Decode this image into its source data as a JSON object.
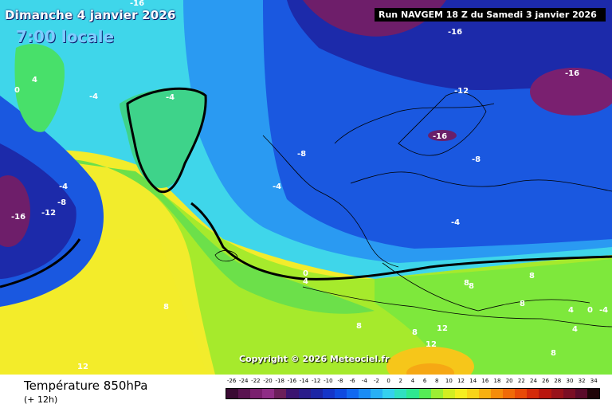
{
  "header": {
    "date": "Dimanche 4 janvier 2026",
    "time": "7:00 locale",
    "run": "Run NAVGEM 18 Z du Samedi 3 janvier 2026"
  },
  "copyright": "Copyright © 2026 Meteociel.fr",
  "footer": {
    "variable": "Température 850hPa",
    "lead": "(+ 12h)"
  },
  "contour_labels": [
    "-16",
    "-16",
    "-16",
    "-16",
    "-12",
    "-12",
    "-16",
    "-8",
    "-8",
    "-8",
    "-4",
    "-4",
    "-4",
    "-4",
    "-4",
    "4",
    "0",
    "0",
    "4",
    "8",
    "8",
    "8",
    "8",
    "8",
    "8",
    "12",
    "12",
    "12",
    "4",
    "4",
    "0",
    "-4",
    "8",
    "8"
  ],
  "scale": {
    "labels": [
      "-26",
      "-24",
      "-22",
      "-20",
      "-18",
      "-16",
      "-14",
      "-12",
      "-10",
      "-8",
      "-6",
      "-4",
      "-2",
      "0",
      "2",
      "4",
      "6",
      "8",
      "10",
      "12",
      "14",
      "16",
      "18",
      "20",
      "22",
      "24",
      "26",
      "28",
      "30",
      "32",
      "34"
    ],
    "colors": [
      "#3a0a33",
      "#5a1350",
      "#7a1f6e",
      "#8f2d86",
      "#6b1f5a",
      "#3b1470",
      "#2a1c8a",
      "#1c25a5",
      "#1535c8",
      "#0f4ae0",
      "#1168f0",
      "#1a8cf5",
      "#28b0f5",
      "#35d0ee",
      "#30e0c0",
      "#2ee890",
      "#55ec55",
      "#9cee33",
      "#d2ee22",
      "#f5ee20",
      "#f8d418",
      "#f8b010",
      "#f58c0a",
      "#f06a08",
      "#e84a08",
      "#d42a0a",
      "#b8160e",
      "#98121a",
      "#7a0e24",
      "#5a0a2a",
      "#200408"
    ]
  }
}
